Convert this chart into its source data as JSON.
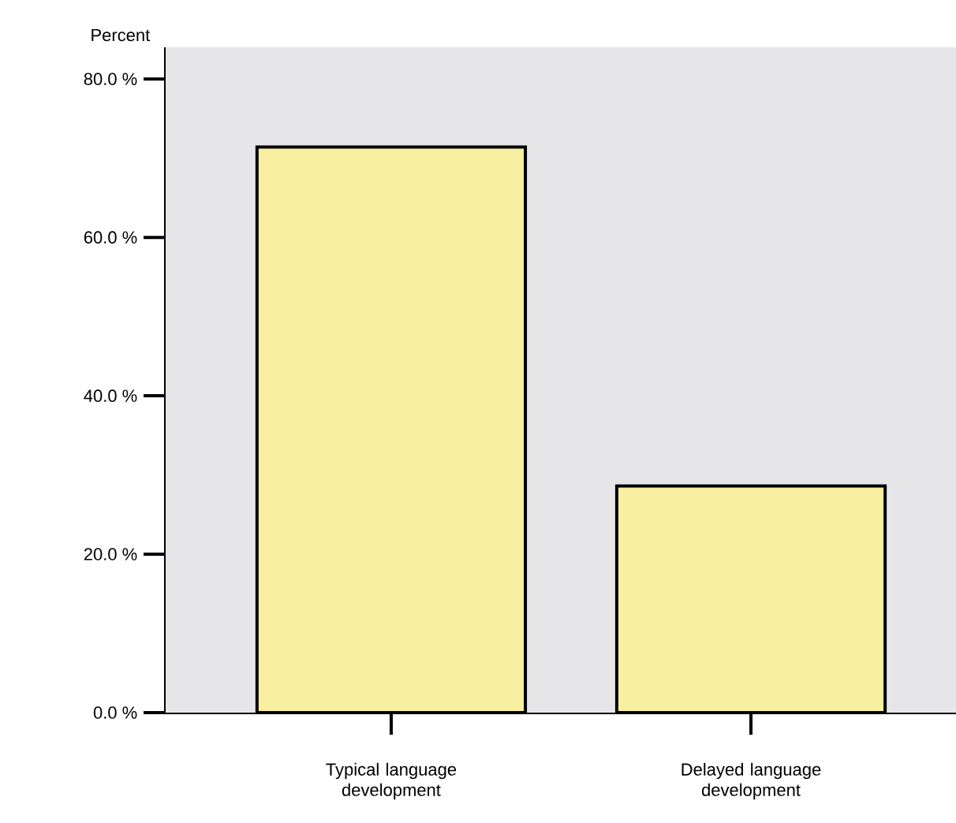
{
  "chart_data": {
    "type": "bar",
    "ylabel": "Percent",
    "categories": [
      "Typical language development",
      "Delayed language development"
    ],
    "values": [
      71.4,
      28.6
    ],
    "color": "#f8f0a0",
    "ylim": [
      0,
      84
    ],
    "yticks": [
      {
        "value": 0,
        "label": "0.0 %"
      },
      {
        "value": 20,
        "label": "20.0 %"
      },
      {
        "value": 40,
        "label": "40.0 %"
      },
      {
        "value": 60,
        "label": "60.0 %"
      },
      {
        "value": 80,
        "label": "80.0 %"
      }
    ]
  }
}
